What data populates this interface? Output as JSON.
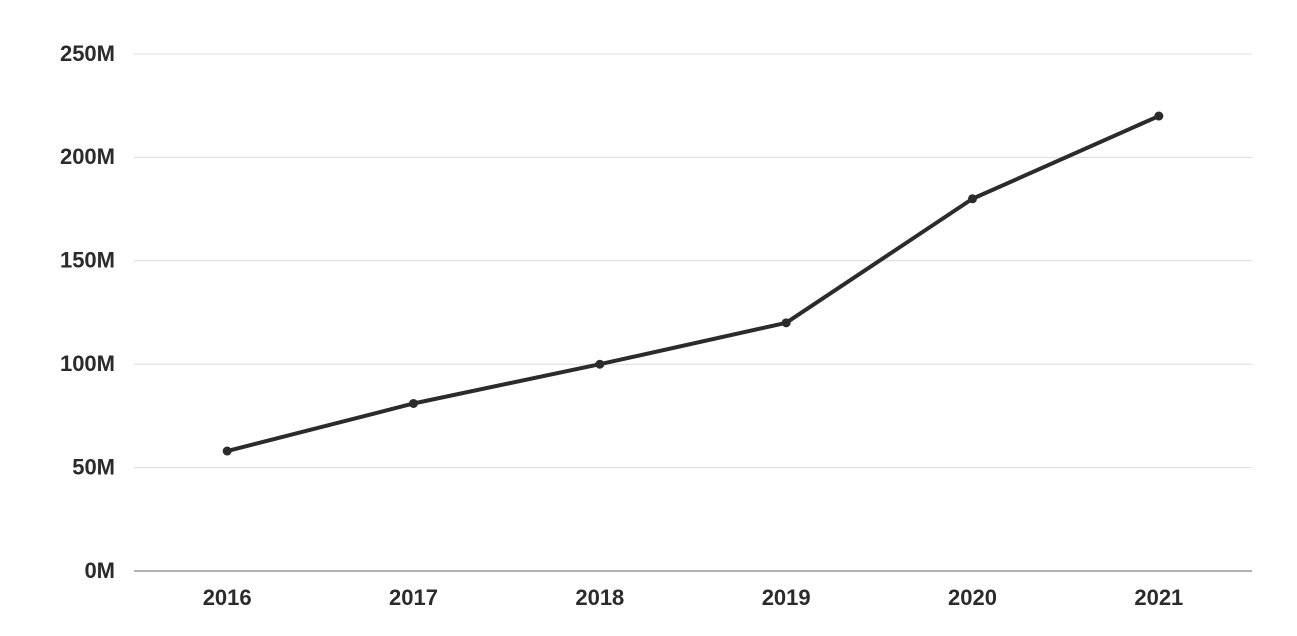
{
  "chart_data": {
    "type": "line",
    "categories": [
      "2016",
      "2017",
      "2018",
      "2019",
      "2020",
      "2021"
    ],
    "values": [
      58,
      81,
      100,
      120,
      180,
      220
    ],
    "color": "#2b2b2b",
    "ylim": [
      0,
      250
    ],
    "yticks": [
      {
        "value": 0,
        "label": "0M"
      },
      {
        "value": 50,
        "label": "50M"
      },
      {
        "value": 100,
        "label": "100M"
      },
      {
        "value": 150,
        "label": "150M"
      },
      {
        "value": 200,
        "label": "200M"
      },
      {
        "value": 250,
        "label": "250M"
      }
    ],
    "grid": true
  }
}
